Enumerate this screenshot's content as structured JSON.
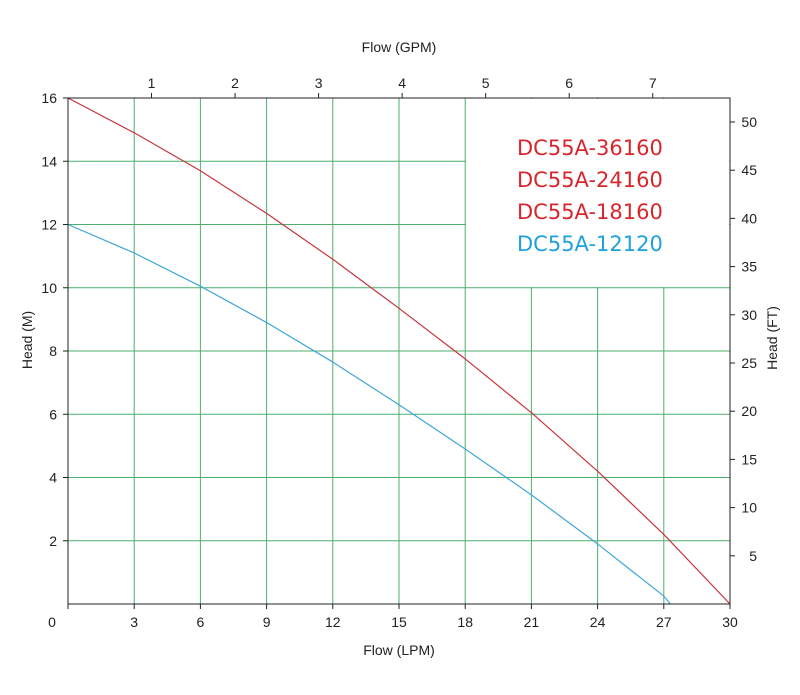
{
  "chart_data": {
    "type": "line",
    "xlabel": "Flow (LPM)",
    "x2label": "Flow (GPM)",
    "ylabel": "Head (M)",
    "y2label": "Head (FT)",
    "xlim": [
      0,
      30
    ],
    "ylim": [
      0,
      16
    ],
    "x2lim": [
      0,
      7.925
    ],
    "y2lim": [
      0,
      52.49
    ],
    "x_ticks": [
      0,
      3,
      6,
      9,
      12,
      15,
      18,
      21,
      24,
      27,
      30
    ],
    "y_ticks": [
      2,
      4,
      6,
      8,
      10,
      12,
      14,
      16
    ],
    "x2_ticks": [
      1,
      2,
      3,
      4,
      5,
      6,
      7
    ],
    "y2_ticks": [
      5,
      10,
      15,
      20,
      25,
      30,
      35,
      40,
      45,
      50
    ],
    "origin_label": "0",
    "grid": true,
    "grid_color": "#4caf6e",
    "legend_position": "top-right",
    "legend": [
      {
        "label": "DC55A-36160",
        "color": "#d7262e"
      },
      {
        "label": "DC55A-24160",
        "color": "#d7262e"
      },
      {
        "label": "DC55A-18160",
        "color": "#d7262e"
      },
      {
        "label": "DC55A-12120",
        "color": "#1ea1dc"
      }
    ],
    "series": [
      {
        "color": "#c8343c",
        "x": [
          0,
          3,
          6,
          9,
          12,
          15,
          18,
          21,
          24,
          27,
          30
        ],
        "y": [
          16,
          14.9,
          13.7,
          12.35,
          10.9,
          9.35,
          7.75,
          6.05,
          4.2,
          2.2,
          0
        ]
      },
      {
        "color": "#3ea6d8",
        "x": [
          0,
          3,
          6,
          9,
          12,
          15,
          18,
          21,
          24,
          27,
          27.3
        ],
        "y": [
          12,
          11.1,
          10.05,
          8.9,
          7.65,
          6.3,
          4.9,
          3.45,
          1.9,
          0.25,
          0
        ]
      }
    ]
  }
}
